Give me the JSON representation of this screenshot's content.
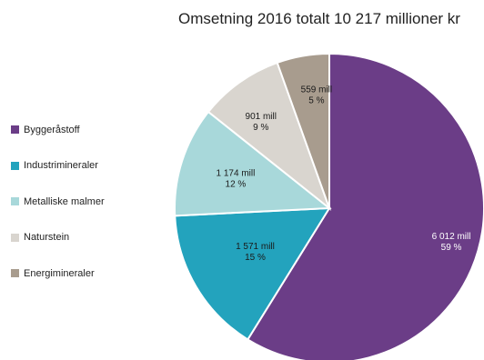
{
  "chart_data": {
    "type": "pie",
    "title": "Omsetning 2016 totalt 10 217 millioner kr",
    "slices": [
      {
        "name": "Byggeråstoff",
        "value": 6012,
        "value_label": "6 012 mill",
        "percent_label": "59 %",
        "color": "#6b3d87",
        "label_color": "#ffffff"
      },
      {
        "name": "Industrimineraler",
        "value": 1571,
        "value_label": "1 571 mill",
        "percent_label": "15 %",
        "color": "#23a3bd",
        "label_color": "#1a1a1a"
      },
      {
        "name": "Metalliske malmer",
        "value": 1174,
        "value_label": "1 174 mill",
        "percent_label": "12 %",
        "color": "#a8d8da",
        "label_color": "#1a1a1a"
      },
      {
        "name": "Naturstein",
        "value": 901,
        "value_label": "901 mill",
        "percent_label": "9 %",
        "color": "#d9d5cf",
        "label_color": "#1a1a1a"
      },
      {
        "name": "Energimineraler",
        "value": 559,
        "value_label": "559 mill",
        "percent_label": "5 %",
        "color": "#a89c8e",
        "label_color": "#1a1a1a"
      }
    ],
    "legend_position": "left"
  }
}
